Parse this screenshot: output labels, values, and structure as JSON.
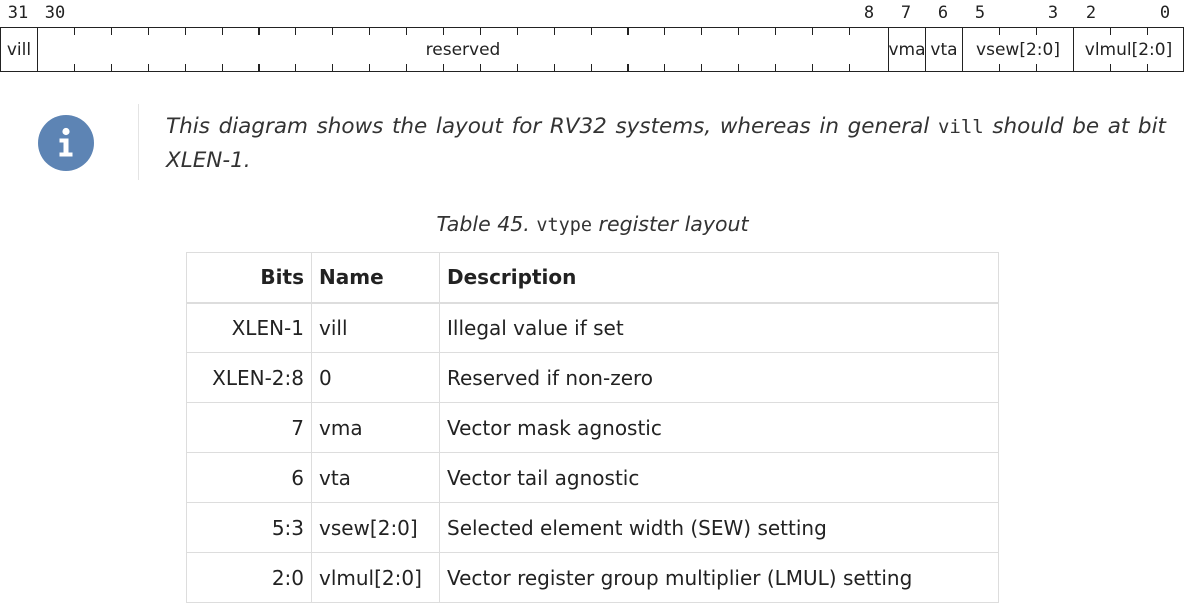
{
  "register": {
    "bit_numbers": [
      {
        "id": "b31",
        "label": "31"
      },
      {
        "id": "b30",
        "label": "30"
      },
      {
        "id": "b8",
        "label": "8"
      },
      {
        "id": "b7",
        "label": "7"
      },
      {
        "id": "b6",
        "label": "6"
      },
      {
        "id": "b5",
        "label": "5"
      },
      {
        "id": "b3",
        "label": "3"
      },
      {
        "id": "b2",
        "label": "2"
      },
      {
        "id": "b0",
        "label": "0"
      }
    ],
    "fields": [
      {
        "id": "vill",
        "label": "vill"
      },
      {
        "id": "reserved",
        "label": "reserved"
      },
      {
        "id": "vma",
        "label": "vma"
      },
      {
        "id": "vta",
        "label": "vta"
      },
      {
        "id": "vsew",
        "label": "vsew[2:0]"
      },
      {
        "id": "vlmul",
        "label": "vlmul[2:0]"
      }
    ]
  },
  "note": {
    "icon": "info-icon",
    "icon_color": "#5d84b4",
    "text_before": "This diagram shows the layout for RV32 systems, whereas in general ",
    "code": "vill",
    "text_after": " should be at bit XLEN-1."
  },
  "table": {
    "caption_prefix": "Table 45. ",
    "caption_code": "vtype",
    "caption_suffix": " register layout",
    "headers": {
      "bits": "Bits",
      "name": "Name",
      "description": "Description"
    },
    "rows": [
      {
        "bits": "XLEN-1",
        "name": "vill",
        "description": "Illegal value if set"
      },
      {
        "bits": "XLEN-2:8",
        "name": "0",
        "description": "Reserved if non-zero"
      },
      {
        "bits": "7",
        "name": "vma",
        "description": "Vector mask agnostic"
      },
      {
        "bits": "6",
        "name": "vta",
        "description": "Vector tail agnostic"
      },
      {
        "bits": "5:3",
        "name": "vsew[2:0]",
        "description": "Selected element width (SEW) setting"
      },
      {
        "bits": "2:0",
        "name": "vlmul[2:0]",
        "description": "Vector register group multiplier (LMUL) setting"
      }
    ]
  }
}
